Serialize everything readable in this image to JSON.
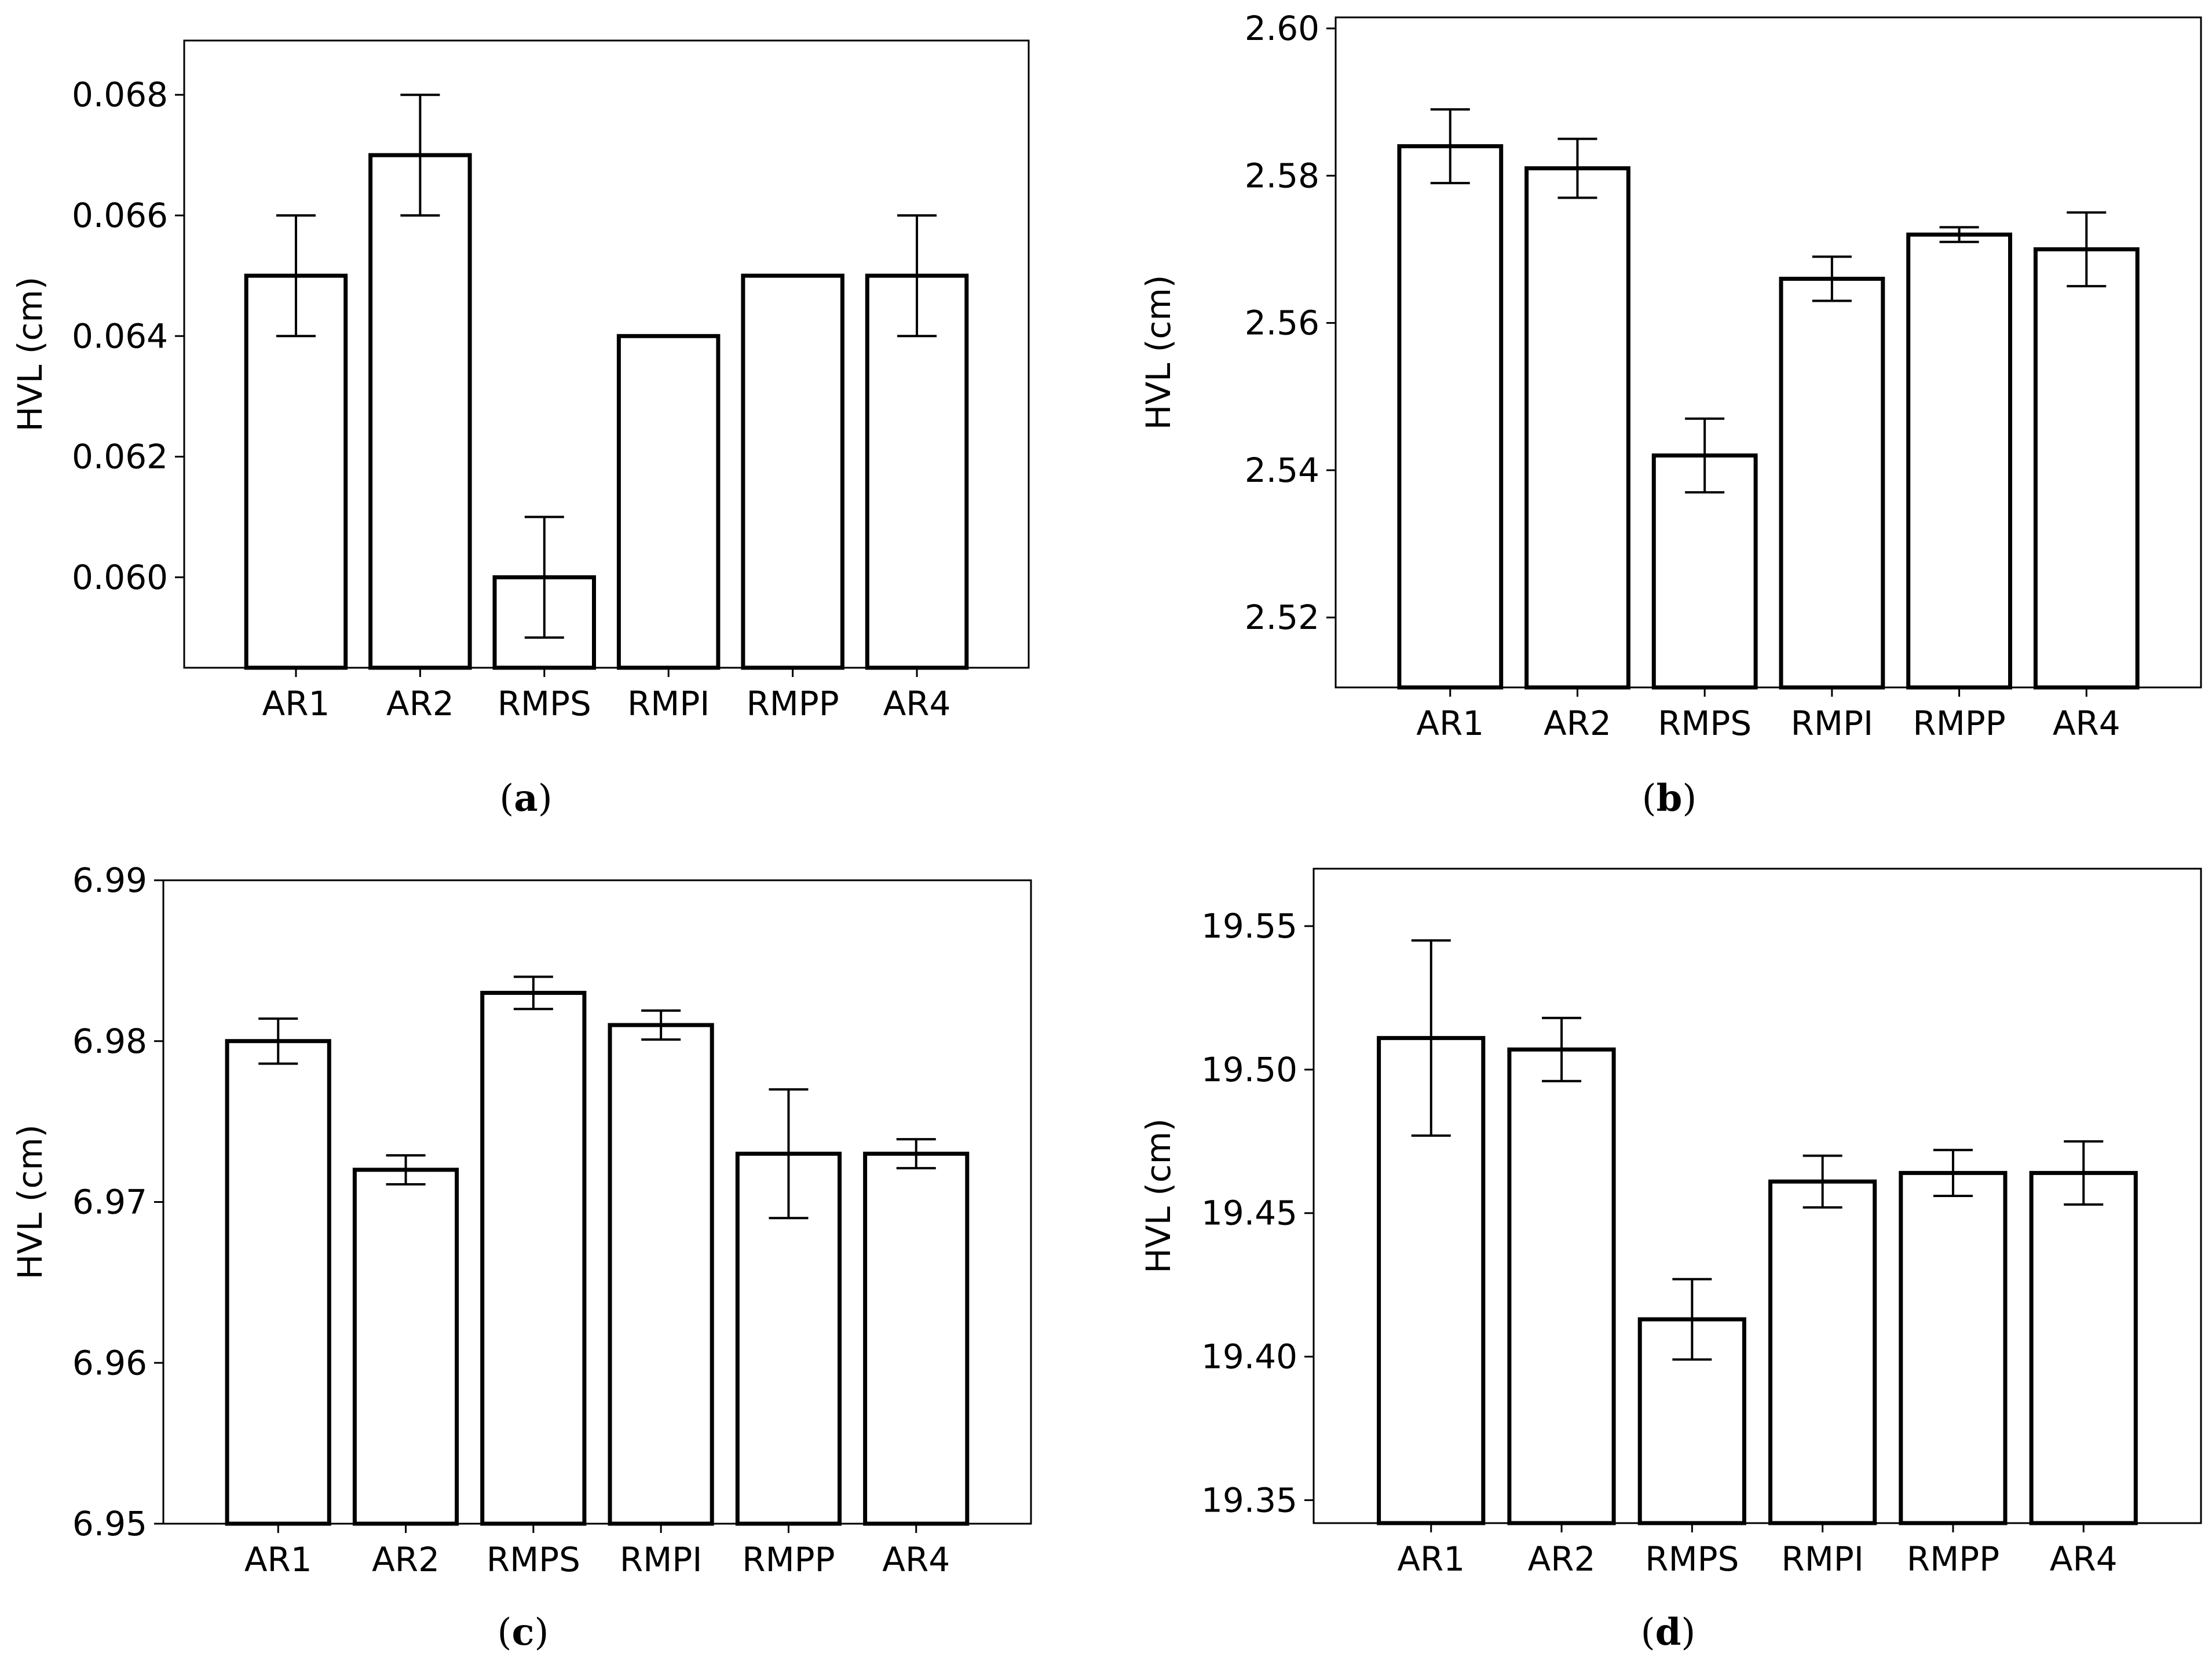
{
  "colors": {
    "bar_fill": "#ffffff",
    "bar_edge": "#000000",
    "errorbar": "#000000",
    "background": "#ffffff"
  },
  "chart_data": [
    {
      "panel": "a",
      "caption_letter": "a",
      "type": "bar",
      "title": "",
      "xlabel": "",
      "ylabel": "HVL (cm)",
      "categories": [
        "AR1",
        "AR2",
        "RMPS",
        "RMPI",
        "RMPP",
        "AR4"
      ],
      "values": [
        0.065,
        0.067,
        0.06,
        0.064,
        0.065,
        0.065
      ],
      "errors": [
        0.001,
        0.001,
        0.001,
        0.0,
        0.0,
        0.001
      ],
      "ylim": [
        0.0585,
        0.0689
      ],
      "yticks": [
        0.06,
        0.062,
        0.064,
        0.066,
        0.068
      ],
      "ytick_labels": [
        "0.060",
        "0.062",
        "0.064",
        "0.066",
        "0.068"
      ],
      "grid": false,
      "legend": "none"
    },
    {
      "panel": "b",
      "caption_letter": "b",
      "type": "bar",
      "title": "",
      "xlabel": "",
      "ylabel": "HVL (cm)",
      "categories": [
        "AR1",
        "AR2",
        "RMPS",
        "RMPI",
        "RMPP",
        "AR4"
      ],
      "values": [
        2.584,
        2.581,
        2.542,
        2.566,
        2.572,
        2.57
      ],
      "errors": [
        0.005,
        0.004,
        0.005,
        0.003,
        0.001,
        0.005
      ],
      "ylim": [
        2.5105,
        2.6015
      ],
      "yticks": [
        2.52,
        2.54,
        2.56,
        2.58,
        2.6
      ],
      "ytick_labels": [
        "2.52",
        "2.54",
        "2.56",
        "2.58",
        "2.60"
      ],
      "grid": false,
      "legend": "none"
    },
    {
      "panel": "c",
      "caption_letter": "c",
      "type": "bar",
      "title": "",
      "xlabel": "",
      "ylabel": "HVL (cm)",
      "categories": [
        "AR1",
        "AR2",
        "RMPS",
        "RMPI",
        "RMPP",
        "AR4"
      ],
      "values": [
        6.98,
        6.972,
        6.983,
        6.981,
        6.973,
        6.973
      ],
      "errors": [
        0.0014,
        0.0009,
        0.001,
        0.0009,
        0.004,
        0.0009
      ],
      "ylim": [
        6.95,
        6.99
      ],
      "yticks": [
        6.95,
        6.96,
        6.97,
        6.98,
        6.99
      ],
      "ytick_labels": [
        "6.95",
        "6.96",
        "6.97",
        "6.98",
        "6.99"
      ],
      "grid": false,
      "legend": "none"
    },
    {
      "panel": "d",
      "caption_letter": "d",
      "type": "bar",
      "title": "",
      "xlabel": "",
      "ylabel": "HVL (cm)",
      "categories": [
        "AR1",
        "AR2",
        "RMPS",
        "RMPI",
        "RMPP",
        "AR4"
      ],
      "values": [
        19.511,
        19.507,
        19.413,
        19.461,
        19.464,
        19.464
      ],
      "errors": [
        0.034,
        0.011,
        0.014,
        0.009,
        0.008,
        0.011
      ],
      "ylim": [
        19.342,
        19.57
      ],
      "yticks": [
        19.35,
        19.4,
        19.45,
        19.5,
        19.55
      ],
      "ytick_labels": [
        "19.35",
        "19.40",
        "19.45",
        "19.50",
        "19.55"
      ],
      "grid": false,
      "legend": "none"
    }
  ]
}
